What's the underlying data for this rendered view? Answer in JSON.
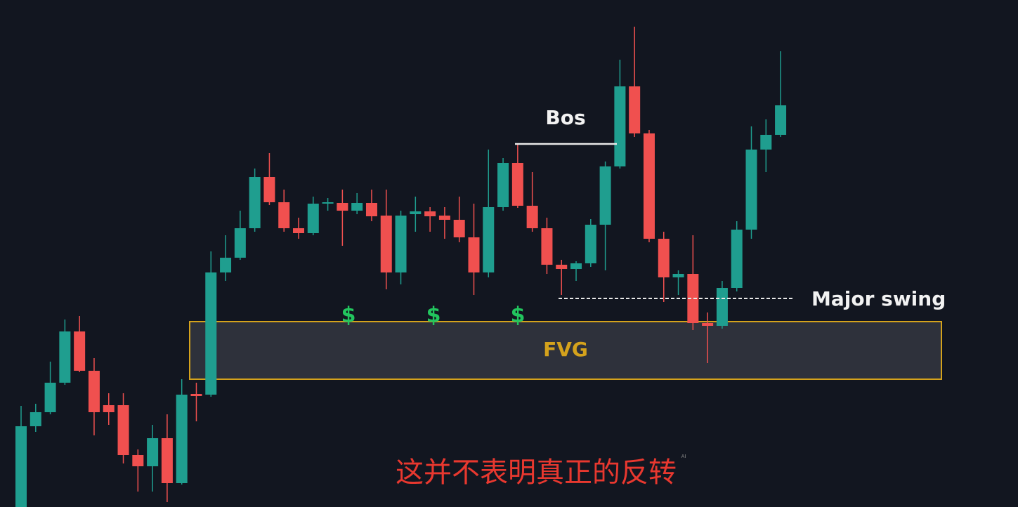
{
  "chart_data": {
    "type": "candlestick",
    "ylim": [
      0,
      722
    ],
    "up_color": "#1f9e8f",
    "down_color": "#f0504f",
    "open": [
      0,
      115,
      135,
      177,
      250,
      194,
      145,
      145,
      74,
      58,
      98,
      34,
      161,
      160,
      334,
      355,
      397,
      470,
      434,
      397,
      390,
      432,
      433,
      422,
      433,
      415,
      334,
      417,
      421,
      415,
      409,
      384,
      334,
      427,
      490,
      429,
      397,
      345,
      339,
      347,
      402,
      485,
      599,
      532,
      382,
      327,
      332,
      262,
      258,
      312,
      395,
      509,
      530
    ],
    "high": [
      144,
      147,
      207,
      267,
      272,
      212,
      162,
      162,
      82,
      117,
      132,
      182,
      177,
      364,
      387,
      422,
      482,
      504,
      452,
      412,
      442,
      440,
      452,
      447,
      452,
      452,
      422,
      442,
      427,
      427,
      442,
      432,
      509,
      497,
      517,
      477,
      412,
      352,
      350,
      410,
      492,
      637,
      684,
      537,
      392,
      337,
      387,
      277,
      322,
      407,
      542,
      552,
      649
    ],
    "low": [
      0,
      107,
      132,
      174,
      192,
      102,
      117,
      62,
      22,
      22,
      7,
      32,
      122,
      157,
      322,
      352,
      392,
      430,
      392,
      382,
      387,
      422,
      372,
      417,
      407,
      310,
      317,
      392,
      392,
      382,
      377,
      302,
      327,
      422,
      426,
      392,
      332,
      302,
      322,
      342,
      337,
      482,
      527,
      377,
      292,
      302,
      252,
      205,
      254,
      307,
      382,
      477,
      527
    ],
    "close": [
      115,
      135,
      177,
      250,
      194,
      135,
      135,
      74,
      58,
      98,
      34,
      160,
      158,
      334,
      355,
      397,
      470,
      434,
      397,
      390,
      432,
      434,
      422,
      433,
      414,
      334,
      415,
      421,
      414,
      409,
      384,
      334,
      427,
      490,
      429,
      397,
      345,
      339,
      347,
      402,
      485,
      599,
      532,
      382,
      327,
      332,
      262,
      258,
      312,
      395,
      509,
      530,
      572
    ],
    "bos": {
      "label": "Bos",
      "value": 517
    },
    "liquidity_level": {
      "value": 325,
      "color": "#22c55e"
    },
    "major_swing": {
      "label": "Major swing",
      "value": 297
    },
    "fvg": {
      "label": "FVG",
      "top": 264,
      "bottom": 182,
      "color": "#d4a21c"
    },
    "liquidity_marks": [
      "$",
      "$",
      "$"
    ]
  },
  "subtitle": "这并不表明真正的反转",
  "watermark": "AI"
}
